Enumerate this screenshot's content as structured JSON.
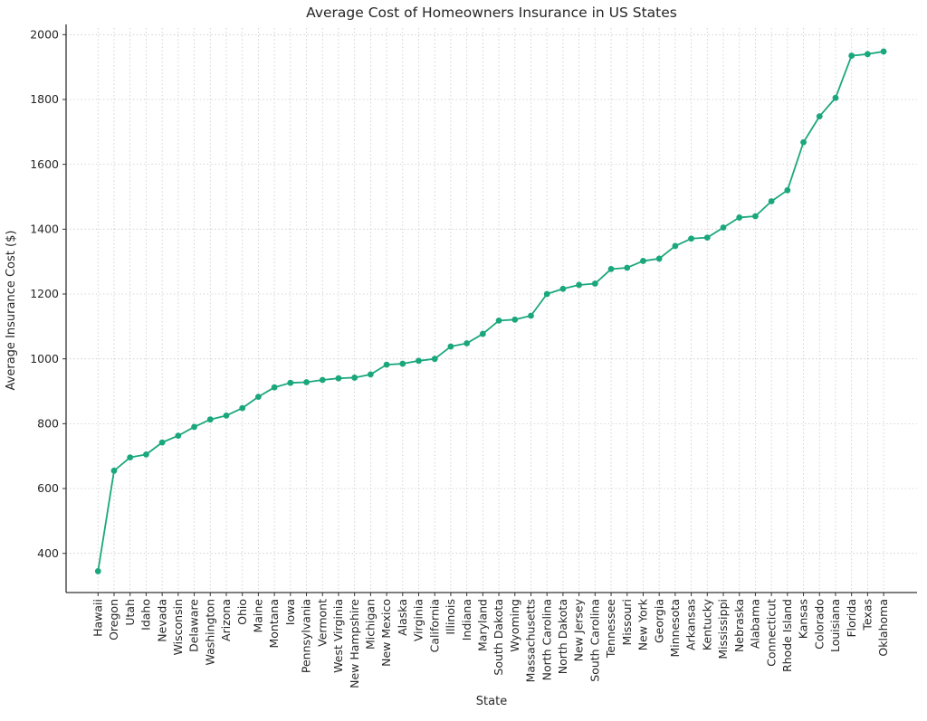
{
  "figure": {
    "background": "#ffffff",
    "text_color": "#262626",
    "grid_color": "#c9c9c9",
    "spine_color": "#333333"
  },
  "chart_data": {
    "type": "line",
    "title": "Average Cost of Homeowners Insurance in US States",
    "xlabel": "State",
    "ylabel": "Average Insurance Cost ($)",
    "line_color": "#1ba77c",
    "marker": "circle",
    "grid": "dotted, both axes",
    "legend_position": "none",
    "ylim": [
      280,
      2020
    ],
    "yticks": [
      400,
      600,
      800,
      1000,
      1200,
      1400,
      1600,
      1800,
      2000
    ],
    "categories": [
      "Hawaii",
      "Oregon",
      "Utah",
      "Idaho",
      "Nevada",
      "Wisconsin",
      "Delaware",
      "Washington",
      "Arizona",
      "Ohio",
      "Maine",
      "Montana",
      "Iowa",
      "Pennsylvania",
      "Vermont",
      "West Virginia",
      "New Hampshire",
      "Michigan",
      "New Mexico",
      "Alaska",
      "Virginia",
      "California",
      "Illinois",
      "Indiana",
      "Maryland",
      "South Dakota",
      "Wyoming",
      "Massachusetts",
      "North Carolina",
      "North Dakota",
      "New Jersey",
      "South Carolina",
      "Tennessee",
      "Missouri",
      "New York",
      "Georgia",
      "Minnesota",
      "Arkansas",
      "Kentucky",
      "Mississippi",
      "Nebraska",
      "Alabama",
      "Connecticut",
      "Rhode Island",
      "Kansas",
      "Colorado",
      "Louisiana",
      "Florida",
      "Texas",
      "Oklahoma"
    ],
    "values": [
      345,
      655,
      696,
      705,
      742,
      763,
      790,
      813,
      825,
      848,
      883,
      912,
      926,
      928,
      935,
      940,
      942,
      952,
      982,
      985,
      994,
      1000,
      1038,
      1048,
      1077,
      1118,
      1121,
      1133,
      1200,
      1216,
      1228,
      1232,
      1277,
      1281,
      1302,
      1309,
      1348,
      1371,
      1374,
      1405,
      1436,
      1440,
      1486,
      1520,
      1668,
      1748,
      1805,
      1935,
      1940,
      1948
    ]
  }
}
